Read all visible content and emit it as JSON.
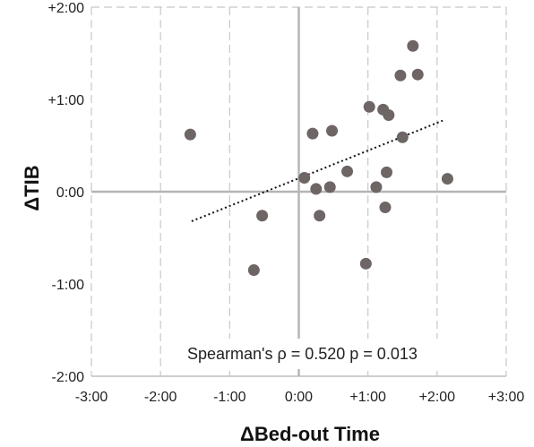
{
  "chart_data": {
    "type": "scatter",
    "title": "",
    "xlabel": "ΔBed-out Time",
    "ylabel": "ΔTIB",
    "xlim": [
      -3,
      3
    ],
    "ylim": [
      -2,
      2
    ],
    "x_ticks": [
      {
        "value": -3,
        "label": "-3:00"
      },
      {
        "value": -2,
        "label": "-2:00"
      },
      {
        "value": -1,
        "label": "-1:00"
      },
      {
        "value": 0,
        "label": "0:00"
      },
      {
        "value": 1,
        "label": "+1:00"
      },
      {
        "value": 2,
        "label": "+2:00"
      },
      {
        "value": 3,
        "label": "+3:00"
      }
    ],
    "y_ticks": [
      {
        "value": -2,
        "label": "-2:00"
      },
      {
        "value": -1,
        "label": "-1:00"
      },
      {
        "value": 0,
        "label": "0:00"
      },
      {
        "value": 1,
        "label": "+1:00"
      },
      {
        "value": 2,
        "label": "+2:00"
      }
    ],
    "grid": {
      "vertical": "dashed",
      "horizontal": "none"
    },
    "point_color": "#6e6565",
    "points": [
      {
        "x": -1.57,
        "y": 0.62
      },
      {
        "x": -0.53,
        "y": -0.26
      },
      {
        "x": -0.65,
        "y": -0.85
      },
      {
        "x": 0.08,
        "y": 0.15
      },
      {
        "x": 0.2,
        "y": 0.63
      },
      {
        "x": 0.25,
        "y": 0.03
      },
      {
        "x": 0.3,
        "y": -0.26
      },
      {
        "x": 0.45,
        "y": 0.05
      },
      {
        "x": 0.48,
        "y": 0.66
      },
      {
        "x": 0.7,
        "y": 0.22
      },
      {
        "x": 0.97,
        "y": -0.78
      },
      {
        "x": 1.02,
        "y": 0.92
      },
      {
        "x": 1.12,
        "y": 0.05
      },
      {
        "x": 1.22,
        "y": 0.89
      },
      {
        "x": 1.25,
        "y": -0.17
      },
      {
        "x": 1.27,
        "y": 0.21
      },
      {
        "x": 1.3,
        "y": 0.83
      },
      {
        "x": 1.47,
        "y": 1.26
      },
      {
        "x": 1.5,
        "y": 0.59
      },
      {
        "x": 1.65,
        "y": 1.58
      },
      {
        "x": 1.72,
        "y": 1.27
      },
      {
        "x": 2.15,
        "y": 0.14
      }
    ],
    "trendline": {
      "style": "dotted",
      "x": [
        -1.55,
        2.08
      ],
      "y": [
        -0.32,
        0.77
      ]
    },
    "annotation": "Spearman's ρ = 0.520 p = 0.013"
  }
}
